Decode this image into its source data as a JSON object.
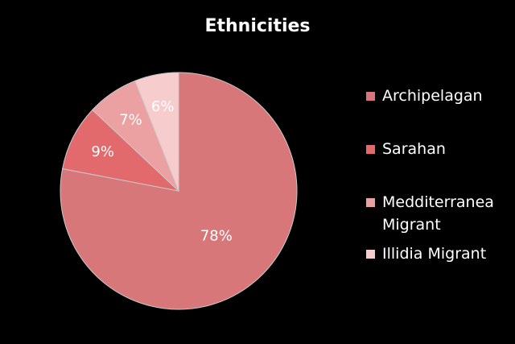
{
  "chart_data": {
    "type": "pie",
    "title": "Ethnicities",
    "categories": [
      "Archipelagan",
      "Sarahan",
      "Medditerranea Migrant",
      "Illidia Migrant"
    ],
    "values": [
      78,
      9,
      7,
      6
    ],
    "value_labels": [
      "78%",
      "9%",
      "7%",
      "6%"
    ],
    "colors": [
      "#d8777a",
      "#e26a6c",
      "#eba1a2",
      "#f6cccd"
    ],
    "legend": "right"
  }
}
